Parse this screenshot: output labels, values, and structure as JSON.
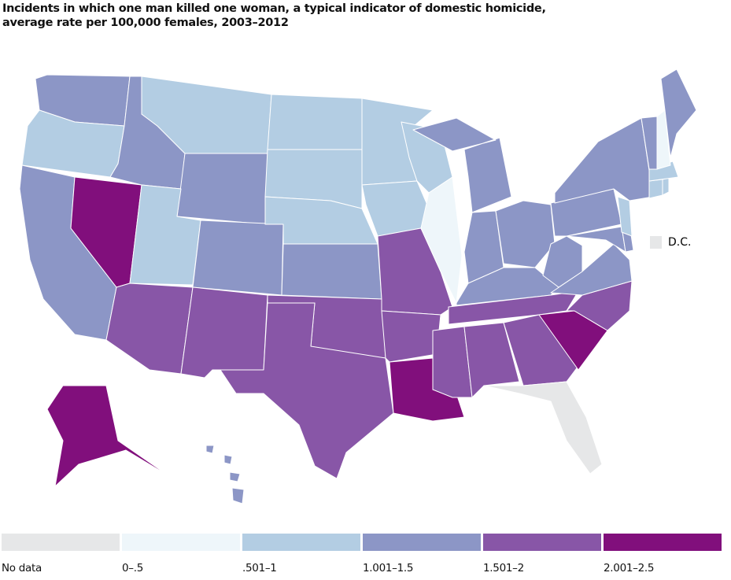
{
  "title": {
    "line1": "Incidents in which one man killed one woman, a typical indicator of domestic homicide,",
    "line2": "average rate per 100,000 females, 2003–2012"
  },
  "legend": [
    {
      "label": "No data",
      "color": "#e6e7e8"
    },
    {
      "label": "0–.5",
      "color": "#eef6fa"
    },
    {
      "label": ".501–1",
      "color": "#b3cde3"
    },
    {
      "label": "1.001–1.5",
      "color": "#8c96c6"
    },
    {
      "label": "1.501–2",
      "color": "#8856a7"
    },
    {
      "label": "2.001–2.5",
      "color": "#810f7c"
    }
  ],
  "dc": {
    "label": "D.C.",
    "category": 0
  },
  "states": {
    "WA": 3,
    "OR": 2,
    "CA": 3,
    "NV": 5,
    "ID": 3,
    "MT": 2,
    "WY": 3,
    "UT": 2,
    "CO": 3,
    "AZ": 4,
    "NM": 4,
    "ND": 2,
    "SD": 2,
    "NE": 2,
    "KS": 3,
    "OK": 4,
    "TX": 4,
    "MN": 2,
    "IA": 2,
    "MO": 4,
    "AR": 4,
    "LA": 5,
    "WI": 2,
    "IL": 1,
    "MI": 3,
    "IN": 3,
    "OH": 3,
    "KY": 3,
    "TN": 4,
    "MS": 4,
    "AL": 4,
    "GA": 4,
    "FL": 0,
    "SC": 5,
    "NC": 4,
    "VA": 3,
    "WV": 3,
    "MD": 3,
    "DE": 3,
    "PA": 3,
    "NJ": 2,
    "NY": 3,
    "CT": 2,
    "RI": 2,
    "MA": 2,
    "VT": 3,
    "NH": 1,
    "ME": 3,
    "AK": 5,
    "HI": 3
  }
}
